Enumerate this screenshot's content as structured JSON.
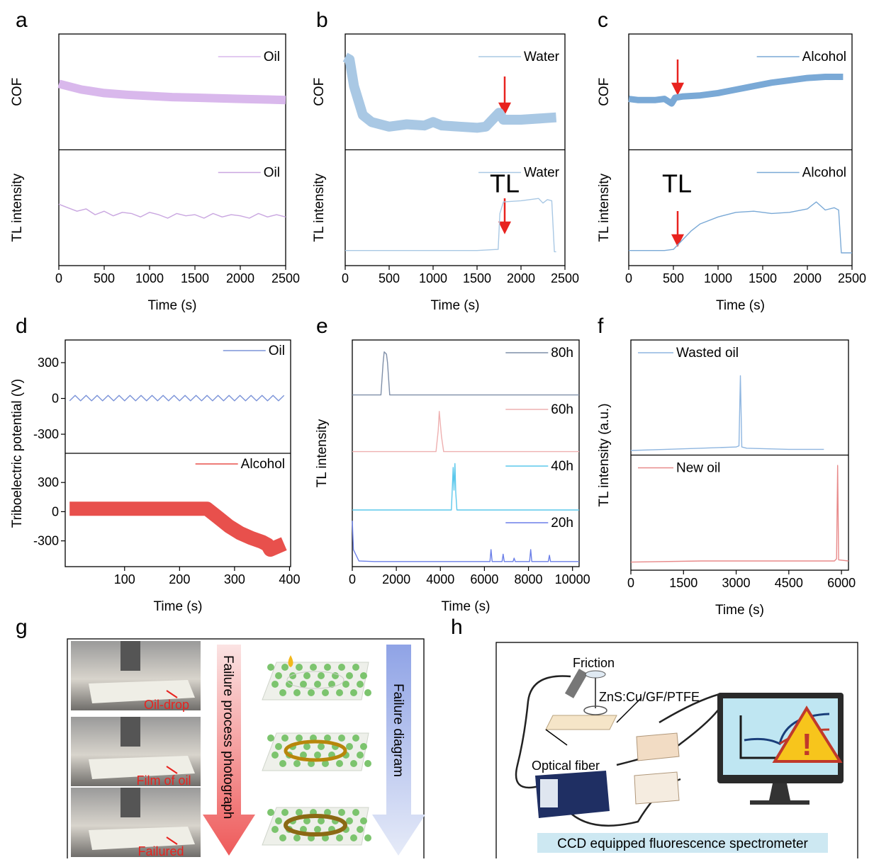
{
  "chart_data": [
    {
      "panel": "a",
      "type": "line",
      "x_label": "Time (s)",
      "xlim": [
        0,
        2500
      ],
      "xticks": [
        0,
        500,
        1000,
        1500,
        2000,
        2500
      ],
      "legend": "upper right",
      "subplots": [
        {
          "y_label": "COF",
          "ylim": [
            0,
            1
          ],
          "series": [
            {
              "name": "Oil",
              "color": "#d9b8ec",
              "x": [
                0,
                250,
                500,
                750,
                1000,
                1250,
                1500,
                1750,
                2000,
                2250,
                2500
              ],
              "values": [
                0.57,
                0.52,
                0.49,
                0.475,
                0.465,
                0.455,
                0.45,
                0.445,
                0.44,
                0.435,
                0.43
              ]
            }
          ]
        },
        {
          "y_label": "TL intensity",
          "ylim": [
            0,
            1
          ],
          "series": [
            {
              "name": "Oil",
              "color": "#c9a6e0",
              "x": [
                0,
                100,
                200,
                300,
                400,
                500,
                600,
                700,
                800,
                900,
                1000,
                1100,
                1200,
                1300,
                1400,
                1500,
                1600,
                1700,
                1800,
                1900,
                2000,
                2100,
                2200,
                2300,
                2400,
                2500
              ],
              "values": [
                0.53,
                0.5,
                0.47,
                0.49,
                0.44,
                0.47,
                0.43,
                0.46,
                0.45,
                0.42,
                0.46,
                0.44,
                0.41,
                0.45,
                0.43,
                0.44,
                0.41,
                0.45,
                0.42,
                0.44,
                0.43,
                0.41,
                0.45,
                0.42,
                0.44,
                0.42
              ]
            }
          ]
        }
      ]
    },
    {
      "panel": "b",
      "type": "line",
      "x_label": "Time (s)",
      "xlim": [
        0,
        2500
      ],
      "xticks": [
        0,
        500,
        1000,
        1500,
        2000,
        2500
      ],
      "legend": "upper right",
      "subplots": [
        {
          "y_label": "COF",
          "ylim": [
            0,
            1
          ],
          "series": [
            {
              "name": "Water",
              "color": "#a9c8e4",
              "x": [
                0,
                50,
                100,
                200,
                300,
                500,
                700,
                900,
                1000,
                1100,
                1300,
                1500,
                1600,
                1700,
                1750,
                1800,
                2000,
                2200,
                2400
              ],
              "values": [
                0.8,
                0.78,
                0.55,
                0.3,
                0.24,
                0.2,
                0.22,
                0.21,
                0.24,
                0.21,
                0.2,
                0.19,
                0.2,
                0.28,
                0.32,
                0.26,
                0.26,
                0.27,
                0.28
              ]
            }
          ]
        },
        {
          "y_label": "TL intensity",
          "annotation": "TL",
          "ylim": [
            0,
            1
          ],
          "series": [
            {
              "name": "Water",
              "color": "#a9c8e4",
              "x": [
                0,
                500,
                1000,
                1500,
                1740,
                1760,
                1800,
                2000,
                2100,
                2200,
                2250,
                2300,
                2350,
                2380,
                2400
              ],
              "values": [
                0.13,
                0.13,
                0.13,
                0.13,
                0.14,
                0.45,
                0.55,
                0.56,
                0.57,
                0.58,
                0.54,
                0.57,
                0.56,
                0.12,
                0.12
              ]
            }
          ]
        }
      ]
    },
    {
      "panel": "c",
      "type": "line",
      "x_label": "Time (s)",
      "xlim": [
        0,
        2500
      ],
      "xticks": [
        0,
        500,
        1000,
        1500,
        2000,
        2500
      ],
      "legend": "upper right",
      "subplots": [
        {
          "y_label": "COF",
          "ylim": [
            0,
            1
          ],
          "series": [
            {
              "name": "Alcohol",
              "color": "#7aa9d6",
              "x": [
                0,
                100,
                200,
                300,
                400,
                480,
                520,
                600,
                800,
                1000,
                1200,
                1400,
                1600,
                1800,
                2000,
                2200,
                2400
              ],
              "values": [
                0.44,
                0.43,
                0.43,
                0.43,
                0.44,
                0.4,
                0.45,
                0.46,
                0.47,
                0.49,
                0.52,
                0.55,
                0.58,
                0.6,
                0.62,
                0.63,
                0.63
              ]
            }
          ]
        },
        {
          "y_label": "TL intensity",
          "annotation": "TL",
          "ylim": [
            0,
            1
          ],
          "series": [
            {
              "name": "Alcohol",
              "color": "#7aa9d6",
              "x": [
                0,
                400,
                500,
                600,
                700,
                800,
                1000,
                1200,
                1400,
                1600,
                1800,
                2000,
                2100,
                2200,
                2300,
                2350,
                2380,
                2500
              ],
              "values": [
                0.13,
                0.13,
                0.14,
                0.22,
                0.3,
                0.36,
                0.42,
                0.46,
                0.47,
                0.45,
                0.46,
                0.49,
                0.55,
                0.48,
                0.5,
                0.48,
                0.11,
                0.11
              ]
            }
          ]
        }
      ]
    },
    {
      "panel": "d",
      "type": "line",
      "x_label": "Time (s)",
      "y_label": "Triboelectric potential (V)",
      "xlim": [
        -8,
        402
      ],
      "xticks": [
        100,
        200,
        300,
        400
      ],
      "legend": "upper right",
      "subplots": [
        {
          "ylim": [
            -460,
            490
          ],
          "yticks": [
            -300,
            0,
            300
          ],
          "series": [
            {
              "name": "Oil",
              "color": "#7b93d8",
              "x": [
                0,
                10,
                20,
                30,
                40,
                50,
                60,
                70,
                80,
                90,
                100,
                110,
                120,
                130,
                140,
                150,
                160,
                170,
                180,
                190,
                200,
                210,
                220,
                230,
                240,
                250,
                260,
                270,
                280,
                290,
                300,
                310,
                320,
                330,
                340,
                350,
                360,
                370,
                380,
                390
              ],
              "values": [
                -20,
                25,
                -20,
                25,
                -20,
                25,
                -20,
                25,
                -20,
                25,
                -20,
                25,
                -20,
                25,
                -20,
                25,
                -20,
                25,
                -20,
                25,
                -20,
                25,
                -20,
                25,
                -20,
                25,
                -20,
                25,
                -20,
                25,
                -20,
                25,
                -20,
                25,
                -20,
                25,
                -20,
                25,
                -20,
                25
              ]
            }
          ]
        },
        {
          "ylim": [
            -565,
            600
          ],
          "yticks": [
            -300,
            0,
            300
          ],
          "series": [
            {
              "name": "Alcohol",
              "color": "#e8504c",
              "x": [
                0,
                50,
                100,
                150,
                200,
                250,
                270,
                290,
                310,
                330,
                350,
                360,
                365,
                390
              ],
              "values": [
                30,
                30,
                30,
                30,
                30,
                30,
                -60,
                -150,
                -220,
                -270,
                -310,
                -340,
                -390,
                -330
              ]
            }
          ]
        }
      ]
    },
    {
      "panel": "e",
      "type": "line",
      "x_label": "Time (s)",
      "y_label": "TL intensity",
      "xlim": [
        0,
        10300
      ],
      "xticks": [
        0,
        2000,
        4000,
        6000,
        8000,
        10000
      ],
      "legend": "upper right",
      "dividers": false,
      "subplots": [
        {
          "ylim": [
            0,
            1
          ],
          "series": [
            {
              "name": "80h",
              "color": "#7f8fa8",
              "x": [
                0,
                1300,
                1400,
                1450,
                1550,
                1600,
                1700,
                10300
              ],
              "values": [
                0.03,
                0.03,
                0.6,
                0.79,
                0.75,
                0.6,
                0.03,
                0.03
              ]
            }
          ]
        },
        {
          "ylim": [
            0,
            1
          ],
          "series": [
            {
              "name": "60h",
              "color": "#eeb0b0",
              "x": [
                0,
                3800,
                3900,
                3950,
                4050,
                4150,
                10300
              ],
              "values": [
                0.03,
                0.03,
                0.4,
                0.74,
                0.3,
                0.03,
                0.03
              ]
            }
          ]
        },
        {
          "ylim": [
            0,
            1
          ],
          "series": [
            {
              "name": "40h",
              "color": "#5bc8ec",
              "x": [
                0,
                4500,
                4580,
                4620,
                4660,
                4700,
                4750,
                10300
              ],
              "values": [
                0,
                0,
                0.75,
                0.35,
                0.82,
                0.3,
                0,
                0
              ]
            }
          ]
        },
        {
          "ylim": [
            0,
            1
          ],
          "series": [
            {
              "name": "20h",
              "color": "#6b7fe8",
              "x": [
                0,
                50,
                300,
                1000,
                6250,
                6300,
                6350,
                6800,
                6850,
                6900,
                7300,
                7350,
                7400,
                8050,
                8100,
                8150,
                8900,
                8950,
                9000,
                10300
              ],
              "values": [
                0.81,
                0.3,
                0.1,
                0.09,
                0.09,
                0.3,
                0.09,
                0.09,
                0.22,
                0.09,
                0.09,
                0.15,
                0.09,
                0.09,
                0.3,
                0.09,
                0.09,
                0.2,
                0.09,
                0.09
              ]
            }
          ]
        }
      ]
    },
    {
      "panel": "f",
      "type": "line",
      "x_label": "Time (s)",
      "y_label": "TL intensity (a.u.)",
      "xlim": [
        0,
        6200
      ],
      "xticks": [
        0,
        1500,
        3000,
        4500,
        6000
      ],
      "legend": "upper left",
      "subplots": [
        {
          "ylim": [
            0,
            1
          ],
          "series": [
            {
              "name": "Wasted oil",
              "color": "#8fb6e0",
              "x": [
                0,
                1000,
                2000,
                3000,
                3080,
                3120,
                3160,
                3300,
                4500,
                5500
              ],
              "values": [
                0.04,
                0.05,
                0.06,
                0.07,
                0.08,
                0.69,
                0.07,
                0.06,
                0.05,
                0.05
              ]
            }
          ]
        },
        {
          "ylim": [
            0,
            1
          ],
          "series": [
            {
              "name": "New oil",
              "color": "#e88a8a",
              "x": [
                0,
                2000,
                4000,
                5800,
                5860,
                5890,
                5920,
                6200
              ],
              "values": [
                0.07,
                0.08,
                0.08,
                0.08,
                0.1,
                0.91,
                0.09,
                0.08
              ]
            }
          ]
        }
      ]
    }
  ],
  "panel_g": {
    "label": "g",
    "photo_labels": [
      "Oil-drop",
      "Film of oil",
      "Failured"
    ],
    "arrow_left": "Failure process photograph",
    "arrow_right": "Failure diagram"
  },
  "panel_h": {
    "label": "h",
    "friction": "Friction",
    "material": "ZnS:Cu/GF/PTFE",
    "fiber": "Optical fiber",
    "device": "CCD equipped fluorescence spectrometer"
  }
}
